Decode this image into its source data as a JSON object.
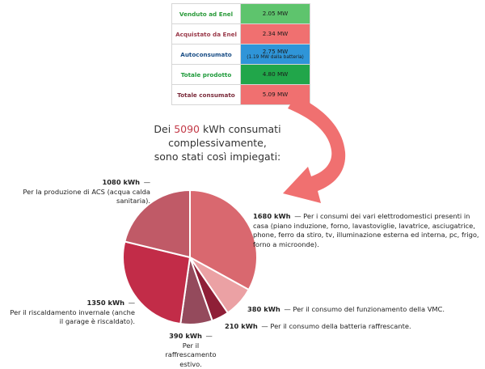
{
  "summary": [
    {
      "label": "Venduto ad Enel",
      "value": "2.05 MW",
      "sub": "",
      "label_color": "#2a9a3a",
      "bg": "#5ec46d"
    },
    {
      "label": "Acquistato da Enel",
      "value": "2.34 MW",
      "sub": "",
      "label_color": "#9a3a4a",
      "bg": "#f07070"
    },
    {
      "label": "Autoconsumato",
      "value": "2.75 MW",
      "sub": "(1.19 MW dalla batteria)",
      "label_color": "#1a4e86",
      "bg": "#2f95d8"
    },
    {
      "label": "Totale prodotto",
      "value": "4.80 MW",
      "sub": "",
      "label_color": "#1e9a3a",
      "bg": "#21a64a"
    },
    {
      "label": "Totale consumato",
      "value": "5.09 MW",
      "sub": "",
      "label_color": "#7a2a3a",
      "bg": "#f07070"
    }
  ],
  "sentence": {
    "prefix": "Dei ",
    "number": "5090",
    "suffix": " kWh consumati complessivamente,",
    "line2": "sono stati così impiegati:"
  },
  "arrow_color": "#f07070",
  "chart_data": {
    "type": "pie",
    "unit": "kWh",
    "slices": [
      {
        "value": 1680,
        "label": "1680 kWh",
        "desc": "Per i consumi dei vari elettrodomestici presenti in casa (piano induzione, forno, lavastoviglie, lavatrice, asciugatrice, phone, ferro da stiro, tv, illuminazione esterna ed interna, pc, frigo, forno a microonde).",
        "color": "#d9686f"
      },
      {
        "value": 380,
        "label": "380 kWh",
        "desc": "Per il consumo del funzionamento della VMC.",
        "color": "#eba1a4"
      },
      {
        "value": 210,
        "label": "210 kWh",
        "desc": "Per il consumo della batteria raffrescante.",
        "color": "#8f1f37"
      },
      {
        "value": 390,
        "label": "390 kWh",
        "desc": "Per il raffrescamento estivo.",
        "color": "#944a5c"
      },
      {
        "value": 1350,
        "label": "1350 kWh",
        "desc": "Per il riscaldamento invernale (anche il garage è riscaldato).",
        "color": "#c22c48"
      },
      {
        "value": 1080,
        "label": "1080 kWh",
        "desc": "Per la produzione di ACS (acqua calda sanitaria).",
        "color": "#c05a67"
      }
    ]
  }
}
